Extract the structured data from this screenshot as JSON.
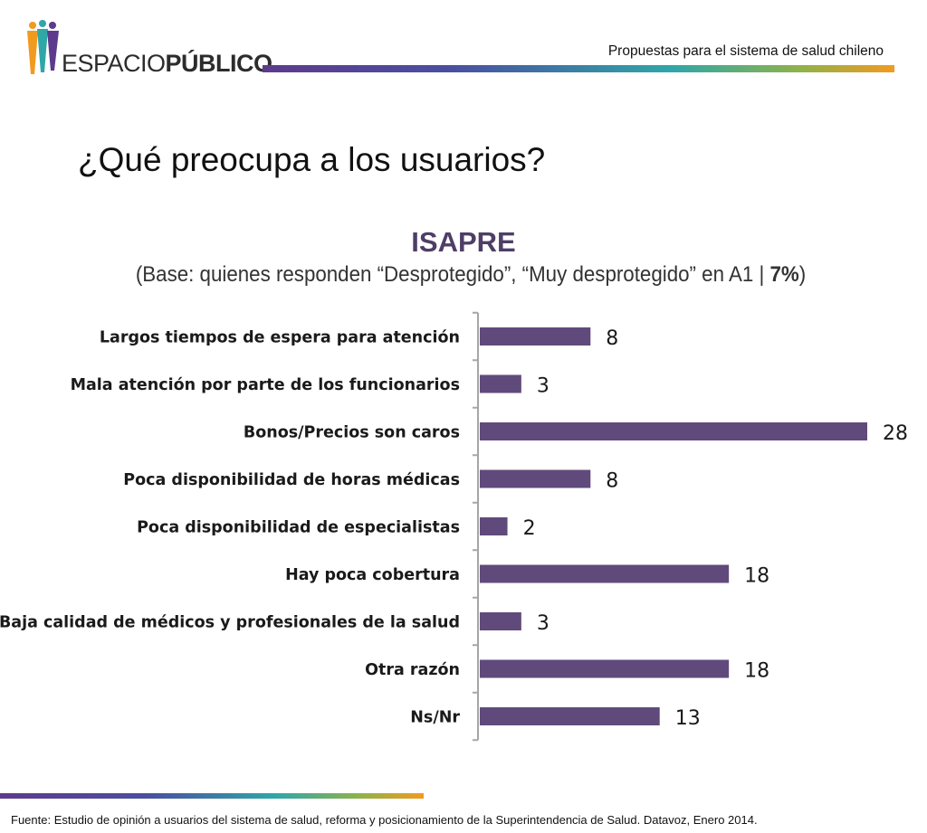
{
  "header": {
    "logo_text_light": "ESPACIO",
    "logo_text_bold": "PÚBLICO",
    "subtitle": "Propuestas para el sistema de salud chileno"
  },
  "main_title": "¿Qué preocupa a los usuarios?",
  "chart_header": {
    "title": "ISAPRE",
    "subtitle_pre": "(Base: quienes responden “Desprotegido”, “Muy desprotegido” en A1 | ",
    "subtitle_bold": "7%",
    "subtitle_post": ")"
  },
  "colors": {
    "bar": "#604a7b",
    "title": "#4f3e67",
    "axis": "#a6a6a6"
  },
  "chart_data": {
    "type": "bar",
    "orientation": "horizontal",
    "title": "ISAPRE",
    "subtitle": "(Base: quienes responden “Desprotegido”, “Muy desprotegido” en A1 | 7%)",
    "categories": [
      "Largos tiempos de espera para atención",
      "Mala atención por parte de los funcionarios",
      "Bonos/Precios son caros",
      "Poca disponibilidad de horas médicas",
      "Poca disponibilidad de especialistas",
      "Hay poca cobertura",
      "Baja calidad de médicos y profesionales de la salud",
      "Otra razón",
      "Ns/Nr"
    ],
    "values": [
      8,
      3,
      28,
      8,
      2,
      18,
      3,
      18,
      13
    ],
    "xlim": [
      0,
      28
    ],
    "data_labels": true,
    "grid": false,
    "legend": "none"
  },
  "footer": {
    "source": "Fuente: Estudio de opinión a usuarios del sistema de salud, reforma y posicionamiento de la Superintendencia de Salud. Datavoz, Enero 2014."
  }
}
